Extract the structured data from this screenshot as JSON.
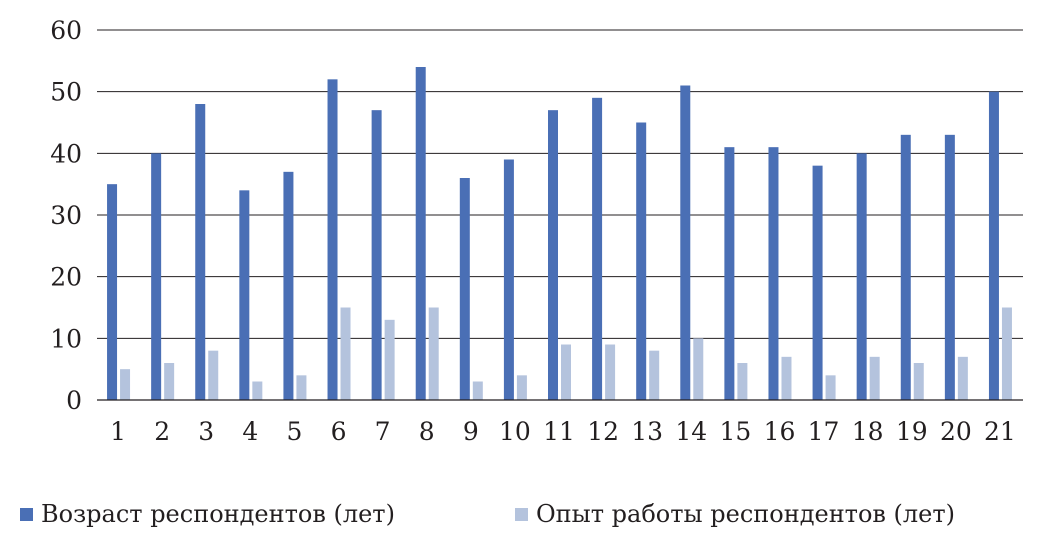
{
  "chart_data": {
    "type": "bar",
    "categories": [
      "1",
      "2",
      "3",
      "4",
      "5",
      "6",
      "7",
      "8",
      "9",
      "10",
      "11",
      "12",
      "13",
      "14",
      "15",
      "16",
      "17",
      "18",
      "19",
      "20",
      "21"
    ],
    "series": [
      {
        "name": "Возраст респондентов (лет)",
        "color": "#4a6fb5",
        "values": [
          35,
          40,
          48,
          34,
          37,
          52,
          47,
          54,
          36,
          39,
          47,
          49,
          45,
          51,
          41,
          41,
          38,
          40,
          43,
          43,
          50
        ]
      },
      {
        "name": "Опыт работы респондентов (лет)",
        "color": "#b4c3dd",
        "values": [
          5,
          6,
          8,
          3,
          4,
          15,
          13,
          15,
          3,
          4,
          9,
          9,
          8,
          10,
          6,
          7,
          4,
          7,
          6,
          7,
          15
        ]
      }
    ],
    "ylim": [
      0,
      60
    ],
    "yticks": [
      "0",
      "10",
      "20",
      "30",
      "40",
      "50",
      "60"
    ],
    "grid": true,
    "legend_position": "bottom"
  }
}
